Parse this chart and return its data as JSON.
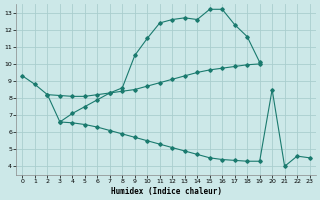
{
  "xlabel": "Humidex (Indice chaleur)",
  "bg_color": "#cce8e8",
  "grid_color": "#aacece",
  "line_color": "#1a7a6e",
  "xlim": [
    -0.5,
    23.5
  ],
  "ylim": [
    3.5,
    13.5
  ],
  "xticks": [
    0,
    1,
    2,
    3,
    4,
    5,
    6,
    7,
    8,
    9,
    10,
    11,
    12,
    13,
    14,
    15,
    16,
    17,
    18,
    19,
    20,
    21,
    22,
    23
  ],
  "yticks": [
    4,
    5,
    6,
    7,
    8,
    9,
    10,
    11,
    12,
    13
  ],
  "curve1": {
    "x": [
      0,
      1,
      2,
      3,
      4,
      5,
      6,
      7,
      8,
      9,
      10,
      11,
      12,
      13,
      14,
      15,
      16,
      17,
      18,
      19
    ],
    "y": [
      9.3,
      8.8,
      8.2,
      6.6,
      7.1,
      7.5,
      7.9,
      8.3,
      8.6,
      10.5,
      11.5,
      12.4,
      12.6,
      12.7,
      12.6,
      13.2,
      13.2,
      12.3,
      11.6,
      10.1
    ]
  },
  "curve2": {
    "x": [
      2,
      3,
      4,
      5,
      6,
      7,
      8,
      9,
      10,
      11,
      12,
      13,
      14,
      15,
      16,
      17,
      18,
      19
    ],
    "y": [
      8.2,
      8.15,
      8.1,
      8.1,
      8.2,
      8.3,
      8.4,
      8.5,
      8.7,
      8.9,
      9.1,
      9.3,
      9.5,
      9.65,
      9.75,
      9.85,
      9.95,
      10.0
    ]
  },
  "curve3_seg1": {
    "x": [
      3,
      4,
      5,
      6,
      7,
      8,
      9,
      10,
      11,
      12,
      13,
      14,
      15,
      16,
      17,
      18,
      19,
      20
    ],
    "y": [
      6.6,
      6.55,
      6.45,
      6.3,
      6.1,
      5.9,
      5.7,
      5.5,
      5.3,
      5.1,
      4.9,
      4.7,
      4.5,
      4.4,
      4.35,
      4.3,
      4.3,
      8.5
    ]
  },
  "curve3_seg2": {
    "x": [
      20,
      21,
      22,
      23
    ],
    "y": [
      8.5,
      4.0,
      4.6,
      4.5
    ]
  }
}
